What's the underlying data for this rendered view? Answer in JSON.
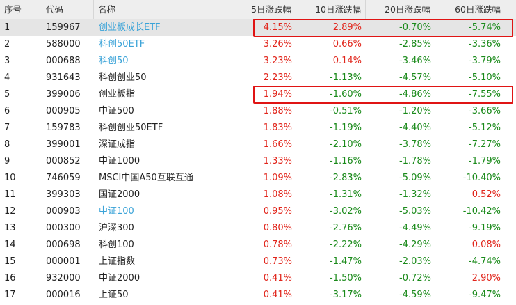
{
  "columns": {
    "seq": "序号",
    "code": "代码",
    "name": "名称",
    "chg5": "5日涨跌幅",
    "chg10": "10日涨跌幅",
    "chg20": "20日涨跌幅",
    "chg60": "60日涨跌幅"
  },
  "rows": [
    {
      "seq": "1",
      "code": "159967",
      "name": "创业板成长ETF",
      "name_link": true,
      "chg5": "4.15%",
      "chg10": "2.89%",
      "chg20": "-0.70%",
      "chg60": "-5.74%",
      "selected": true
    },
    {
      "seq": "2",
      "code": "588000",
      "name": "科创50ETF",
      "name_link": true,
      "chg5": "3.26%",
      "chg10": "0.66%",
      "chg20": "-2.85%",
      "chg60": "-3.36%"
    },
    {
      "seq": "3",
      "code": "000688",
      "name": "科创50",
      "name_link": true,
      "chg5": "3.23%",
      "chg10": "0.14%",
      "chg20": "-3.46%",
      "chg60": "-3.79%"
    },
    {
      "seq": "4",
      "code": "931643",
      "name": "科创创业50",
      "name_link": false,
      "chg5": "2.23%",
      "chg10": "-1.13%",
      "chg20": "-4.57%",
      "chg60": "-5.10%"
    },
    {
      "seq": "5",
      "code": "399006",
      "name": "创业板指",
      "name_link": false,
      "chg5": "1.94%",
      "chg10": "-1.60%",
      "chg20": "-4.86%",
      "chg60": "-7.55%"
    },
    {
      "seq": "6",
      "code": "000905",
      "name": "中证500",
      "name_link": false,
      "chg5": "1.88%",
      "chg10": "-0.51%",
      "chg20": "-1.20%",
      "chg60": "-3.66%"
    },
    {
      "seq": "7",
      "code": "159783",
      "name": "科创创业50ETF",
      "name_link": false,
      "chg5": "1.83%",
      "chg10": "-1.19%",
      "chg20": "-4.40%",
      "chg60": "-5.12%"
    },
    {
      "seq": "8",
      "code": "399001",
      "name": "深证成指",
      "name_link": false,
      "chg5": "1.66%",
      "chg10": "-2.10%",
      "chg20": "-3.78%",
      "chg60": "-7.27%"
    },
    {
      "seq": "9",
      "code": "000852",
      "name": "中证1000",
      "name_link": false,
      "chg5": "1.33%",
      "chg10": "-1.16%",
      "chg20": "-1.78%",
      "chg60": "-1.79%"
    },
    {
      "seq": "10",
      "code": "746059",
      "name": "MSCI中国A50互联互通",
      "name_link": false,
      "chg5": "1.09%",
      "chg10": "-2.83%",
      "chg20": "-5.09%",
      "chg60": "-10.40%"
    },
    {
      "seq": "11",
      "code": "399303",
      "name": "国证2000",
      "name_link": false,
      "chg5": "1.08%",
      "chg10": "-1.31%",
      "chg20": "-1.32%",
      "chg60": "0.52%"
    },
    {
      "seq": "12",
      "code": "000903",
      "name": "中证100",
      "name_link": true,
      "chg5": "0.95%",
      "chg10": "-3.02%",
      "chg20": "-5.03%",
      "chg60": "-10.42%"
    },
    {
      "seq": "13",
      "code": "000300",
      "name": "沪深300",
      "name_link": false,
      "chg5": "0.80%",
      "chg10": "-2.76%",
      "chg20": "-4.49%",
      "chg60": "-9.19%"
    },
    {
      "seq": "14",
      "code": "000698",
      "name": "科创100",
      "name_link": false,
      "chg5": "0.78%",
      "chg10": "-2.22%",
      "chg20": "-4.29%",
      "chg60": "0.08%"
    },
    {
      "seq": "15",
      "code": "000001",
      "name": "上证指数",
      "name_link": false,
      "chg5": "0.73%",
      "chg10": "-1.47%",
      "chg20": "-2.03%",
      "chg60": "-4.74%"
    },
    {
      "seq": "16",
      "code": "932000",
      "name": "中证2000",
      "name_link": false,
      "chg5": "0.41%",
      "chg10": "-1.50%",
      "chg20": "-0.72%",
      "chg60": "2.90%"
    },
    {
      "seq": "17",
      "code": "000016",
      "name": "上证50",
      "name_link": false,
      "chg5": "0.41%",
      "chg10": "-3.17%",
      "chg20": "-4.59%",
      "chg60": "-9.47%"
    }
  ],
  "highlight_rows": [
    1,
    5
  ],
  "colors": {
    "up": "#e1251b",
    "down": "#1a8a1a",
    "link": "#3aa3d8",
    "highlight": "#e01414",
    "selected_row": "#e5e5e5"
  }
}
